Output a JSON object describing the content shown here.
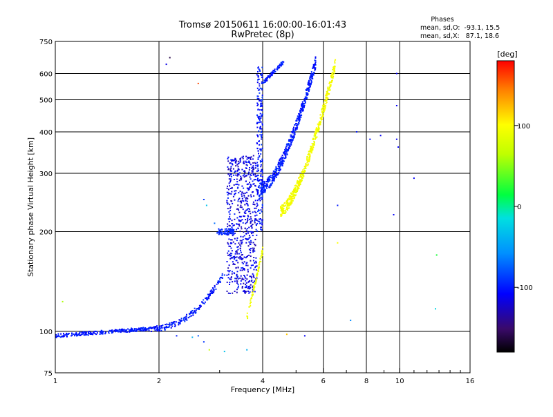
{
  "chart_data": {
    "type": "scatter",
    "title": "Tromsø 20150611 16:00:00-16:01:43",
    "subtitle": "RwPretec (8p)",
    "xlabel": "Frequency [MHz]",
    "ylabel": "Stationary phase Virtual Height [km]",
    "x_scale": "log",
    "y_scale": "log",
    "xlim": [
      1,
      16
    ],
    "ylim": [
      75,
      750
    ],
    "x_ticks": [
      1,
      2,
      4,
      6,
      8,
      10,
      16
    ],
    "x_ticklabels": [
      "1",
      "2",
      "4",
      "6",
      "8",
      "10",
      "16"
    ],
    "x_gridlines": [
      2,
      4,
      6,
      8,
      10
    ],
    "y_ticks": [
      75,
      100,
      200,
      300,
      400,
      500,
      600,
      750
    ],
    "y_ticklabels": [
      "75",
      "100",
      "200",
      "300",
      "400",
      "500",
      "600",
      "750"
    ],
    "y_gridlines": [
      100,
      200,
      300,
      400,
      500,
      600
    ],
    "grid": true,
    "phase_info": {
      "heading": "Phases",
      "line_o": "mean, sd,O:  -93.1, 15.5",
      "line_x": "mean, sd,X:   87.1, 18.6"
    },
    "colorbar": {
      "label": "[deg]",
      "range": [
        -180,
        180
      ],
      "ticks": [
        100,
        0,
        -100
      ],
      "ticklabels": [
        "100",
        "0",
        "-100"
      ]
    },
    "traces": [
      {
        "kind": "o_low",
        "x0": 1.0,
        "x1": 1.9,
        "h0": 97,
        "h1": 102,
        "phase": -100
      },
      {
        "kind": "o_rise",
        "x0": 1.9,
        "x1": 3.1,
        "h0": 102,
        "h1": 150,
        "phase": -100
      },
      {
        "kind": "o_cloud",
        "x0": 3.15,
        "x1": 3.85,
        "h0": 130,
        "h1": 340,
        "phase": -115
      },
      {
        "kind": "o_spike",
        "x0": 3.85,
        "x1": 4.0,
        "h0": 200,
        "h1": 630,
        "phase": -100
      },
      {
        "kind": "o_branch",
        "x0": 3.95,
        "x1": 5.7,
        "h0": 270,
        "h1": 650,
        "phase": -100
      },
      {
        "kind": "x_branch",
        "x0": 4.5,
        "x1": 6.5,
        "h0": 230,
        "h1": 640,
        "phase": 95
      },
      {
        "kind": "x_low",
        "x0": 3.6,
        "x1": 4.0,
        "h0": 110,
        "h1": 175,
        "phase": 90
      }
    ]
  }
}
